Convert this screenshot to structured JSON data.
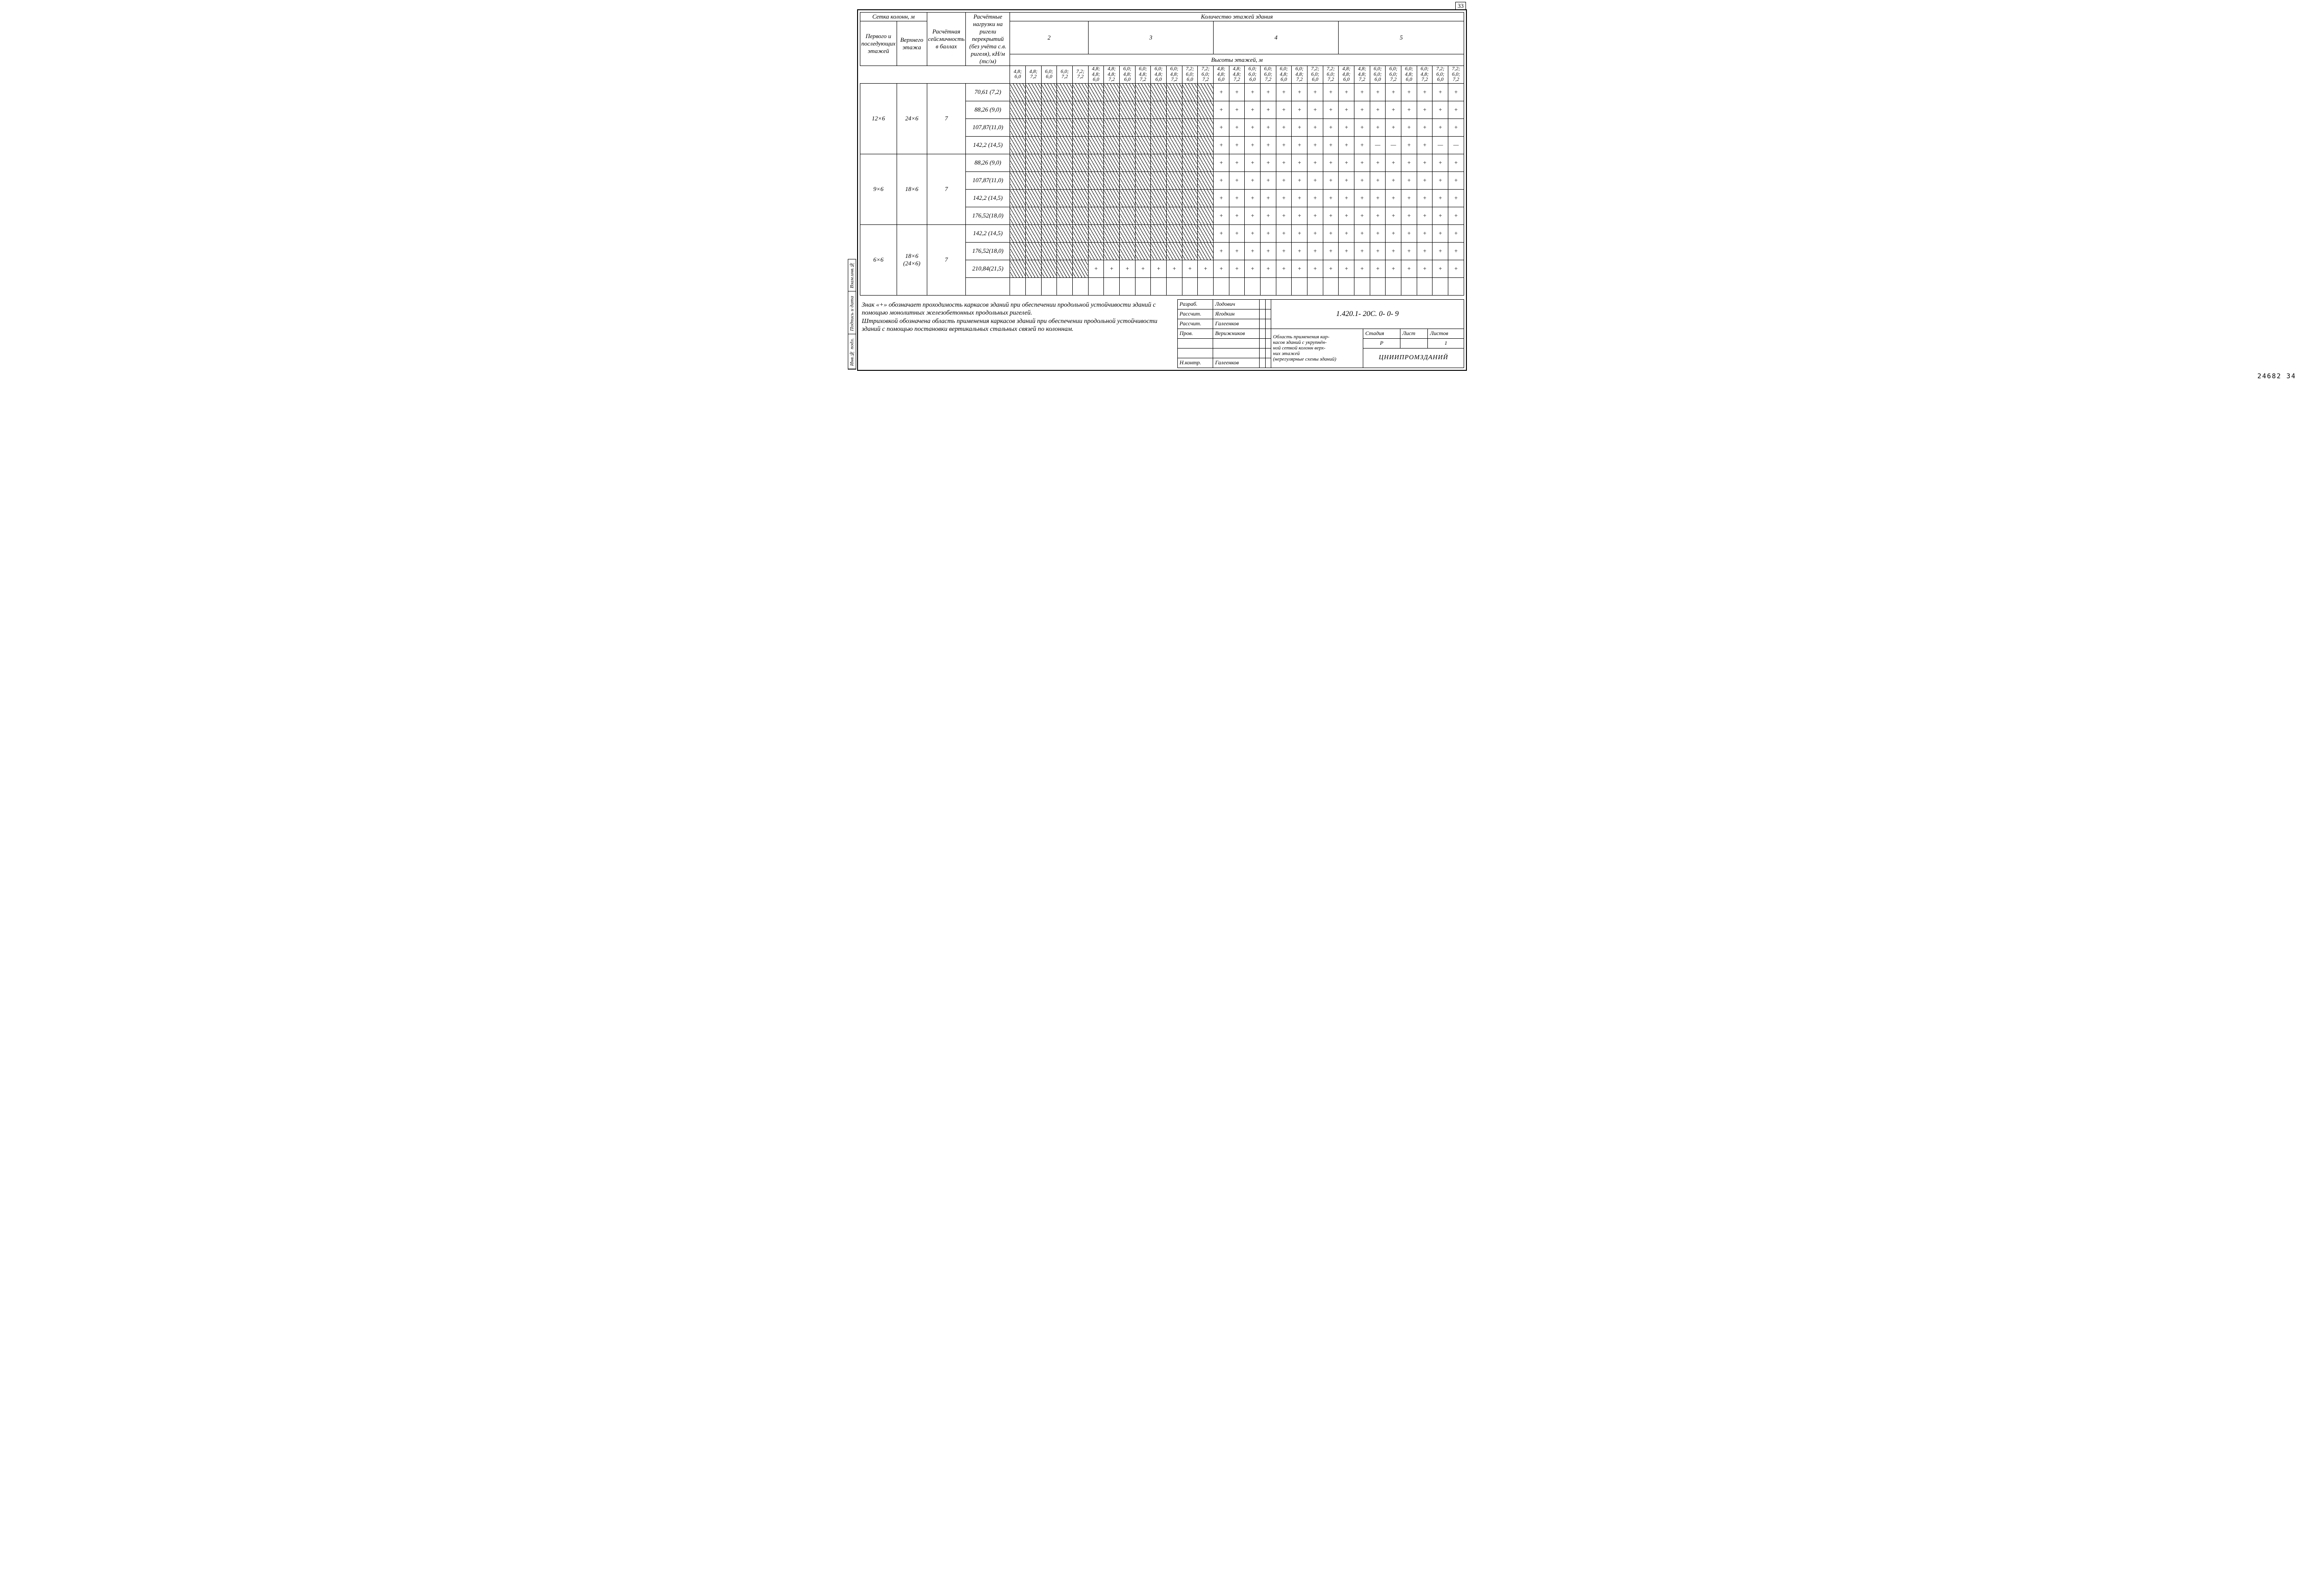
{
  "pageCorner": "33",
  "headers": {
    "colGrid": "Сетка колонн, м",
    "first": "Первого и последующих этажей",
    "upper": "Верхнего этажа",
    "seism": "Расчётная сейсмичность в баллах",
    "loads": "Расчётные нагрузки на ригели перекрытий (без учёта с.в. ригеля), кН/м (тс/м)",
    "storeys": "Количество этажей здания",
    "heights": "Высоты этажей, м",
    "s2": "2",
    "s3": "3",
    "s4": "4",
    "s5": "5"
  },
  "heightCombos": [
    "4,8; 6,0",
    "4,8; 7,2",
    "6,0; 6,0",
    "6,0; 7,2",
    "7,2; 7,2",
    "4,8; 4,8; 6,0",
    "4,8; 4,8; 7,2",
    "6,0; 4,8; 6,0",
    "6,0; 4,8; 7,2",
    "6,0; 4,8; 6,0",
    "6,0; 4,8; 7,2",
    "7,2; 6,0; 6,0",
    "7,2; 6,0; 7,2",
    "4,8; 4,8; 6,0",
    "4,8; 4,8; 7,2",
    "6,0; 6,0; 6,0",
    "6,0; 6,0; 7,2",
    "6,0; 4,8; 6,0",
    "6,0; 4,8; 7,2",
    "7,2; 6,0; 6,0",
    "7,2; 6,0; 7,2",
    "4,8; 4,8; 6,0",
    "4,8; 4,8; 7,2",
    "6,0; 6,0; 6,0",
    "6,0; 6,0; 7,2",
    "6,0; 4,8; 6,0",
    "6,0; 4,8; 7,2",
    "7,2; 6,0; 6,0",
    "7,2; 6,0; 7,2"
  ],
  "groups": [
    {
      "first": "12×6",
      "upper": "24×6",
      "seism": "7",
      "rows": [
        {
          "load": "70,61 (7,2)",
          "cells": [
            "H",
            "H",
            "H",
            "H",
            "H",
            "H",
            "H",
            "H",
            "H",
            "H",
            "H",
            "H",
            "H",
            "+",
            "+",
            "+",
            "+",
            "+",
            "+",
            "+",
            "+",
            "+",
            "+",
            "+",
            "+",
            "+",
            "+",
            "+",
            "+"
          ]
        },
        {
          "load": "88,26 (9,0)",
          "cells": [
            "H",
            "H",
            "H",
            "H",
            "H",
            "H",
            "H",
            "H",
            "H",
            "H",
            "H",
            "H",
            "H",
            "+",
            "+",
            "+",
            "+",
            "+",
            "+",
            "+",
            "+",
            "+",
            "+",
            "+",
            "+",
            "+",
            "+",
            "+",
            "+"
          ]
        },
        {
          "load": "107,87(11,0)",
          "cells": [
            "H",
            "H",
            "H",
            "H",
            "H",
            "H",
            "H",
            "H",
            "H",
            "H",
            "H",
            "H",
            "H",
            "+",
            "+",
            "+",
            "+",
            "+",
            "+",
            "+",
            "+",
            "+",
            "+",
            "+",
            "+",
            "+",
            "+",
            "+",
            "+"
          ]
        },
        {
          "load": "142,2 (14,5)",
          "cells": [
            "H",
            "H",
            "H",
            "H",
            "H",
            "H",
            "H",
            "H",
            "H",
            "H",
            "H",
            "H",
            "H",
            "+",
            "+",
            "+",
            "+",
            "+",
            "+",
            "+",
            "+",
            "+",
            "+",
            "-",
            "-",
            "+",
            "+",
            "-",
            "-"
          ]
        }
      ]
    },
    {
      "first": "9×6",
      "upper": "18×6",
      "seism": "7",
      "rows": [
        {
          "load": "88,26 (9,0)",
          "cells": [
            "H",
            "H",
            "H",
            "H",
            "H",
            "H",
            "H",
            "H",
            "H",
            "H",
            "H",
            "H",
            "H",
            "+",
            "+",
            "+",
            "+",
            "+",
            "+",
            "+",
            "+",
            "+",
            "+",
            "+",
            "+",
            "+",
            "+",
            "+",
            "+"
          ]
        },
        {
          "load": "107,87(11,0)",
          "cells": [
            "H",
            "H",
            "H",
            "H",
            "H",
            "H",
            "H",
            "H",
            "H",
            "H",
            "H",
            "H",
            "H",
            "+",
            "+",
            "+",
            "+",
            "+",
            "+",
            "+",
            "+",
            "+",
            "+",
            "+",
            "+",
            "+",
            "+",
            "+",
            "+"
          ]
        },
        {
          "load": "142,2 (14,5)",
          "cells": [
            "H",
            "H",
            "H",
            "H",
            "H",
            "H",
            "H",
            "H",
            "H",
            "H",
            "H",
            "H",
            "H",
            "+",
            "+",
            "+",
            "+",
            "+",
            "+",
            "+",
            "+",
            "+",
            "+",
            "+",
            "+",
            "+",
            "+",
            "+",
            "+"
          ]
        },
        {
          "load": "176,52(18,0)",
          "cells": [
            "H",
            "H",
            "H",
            "H",
            "H",
            "H",
            "H",
            "H",
            "H",
            "H",
            "H",
            "H",
            "H",
            "+",
            "+",
            "+",
            "+",
            "+",
            "+",
            "+",
            "+",
            "+",
            "+",
            "+",
            "+",
            "+",
            "+",
            "+",
            "+"
          ]
        }
      ]
    },
    {
      "first": "6×6",
      "upper": "18×6 (24×6)",
      "seism": "7",
      "rows": [
        {
          "load": "142,2 (14,5)",
          "cells": [
            "H",
            "H",
            "H",
            "H",
            "H",
            "H",
            "H",
            "H",
            "H",
            "H",
            "H",
            "H",
            "H",
            "+",
            "+",
            "+",
            "+",
            "+",
            "+",
            "+",
            "+",
            "+",
            "+",
            "+",
            "+",
            "+",
            "+",
            "+",
            "+"
          ]
        },
        {
          "load": "176,52(18,0)",
          "cells": [
            "H",
            "H",
            "H",
            "H",
            "H",
            "H",
            "H",
            "H",
            "H",
            "H",
            "H",
            "H",
            "H",
            "+",
            "+",
            "+",
            "+",
            "+",
            "+",
            "+",
            "+",
            "+",
            "+",
            "+",
            "+",
            "+",
            "+",
            "+",
            "+"
          ]
        },
        {
          "load": "210,84(21,5)",
          "cells": [
            "H",
            "H",
            "H",
            "H",
            "H",
            "+",
            "+",
            "+",
            "+",
            "+",
            "+",
            "+",
            "+",
            "+",
            "+",
            "+",
            "+",
            "+",
            "+",
            "+",
            "+",
            "+",
            "+",
            "+",
            "+",
            "+",
            "+",
            "+",
            "+"
          ]
        },
        {
          "load": "",
          "cells": [
            "",
            "",
            "",
            "",
            "",
            "",
            "",
            "",
            "",
            "",
            "",
            "",
            "",
            "",
            "",
            "",
            "",
            "",
            "",
            "",
            "",
            "",
            "",
            "",
            "",
            "",
            "",
            "",
            ""
          ]
        }
      ]
    }
  ],
  "notes": {
    "l1": "Знак «+» обозначает проходимость каркасов зданий при обеспечении продольной устойчивости зданий с помощью монолитных железобетонных продольных ригелей.",
    "l2": "Штриховкой обозначена область применения каркасов зданий при обеспечении продольной устойчивости зданий с помощью постановки вертикальных стальных связей по колоннам."
  },
  "titleblock": {
    "code": "1.420.1- 20С. 0- 0- 9",
    "desc": "Область применения кар-\nкасов зданий с укрупнён-\nной сеткой колонн верх-\nних этажей\n(нерегулярные схемы зданий)",
    "org": "ЦНИИПРОМЗДАНИЙ",
    "stage": "Стадия",
    "sheet": "Лист",
    "sheets": "Листов",
    "stageV": "Р",
    "sheetV": "",
    "sheetsV": "1",
    "roles": [
      [
        "Разраб.",
        "Лодович"
      ],
      [
        "Рассчит.",
        "Ягодкин"
      ],
      [
        "Рассчит.",
        "Галеенков"
      ],
      [
        "Пров.",
        "Верижников"
      ],
      [
        "",
        ""
      ],
      [
        "",
        ""
      ],
      [
        "Н.контр.",
        "Галеенков"
      ]
    ]
  },
  "sidebar": [
    "Инв.№ подл.",
    "Подпись и дата",
    "Взам.инв.№"
  ],
  "footerNum": "24682   34"
}
